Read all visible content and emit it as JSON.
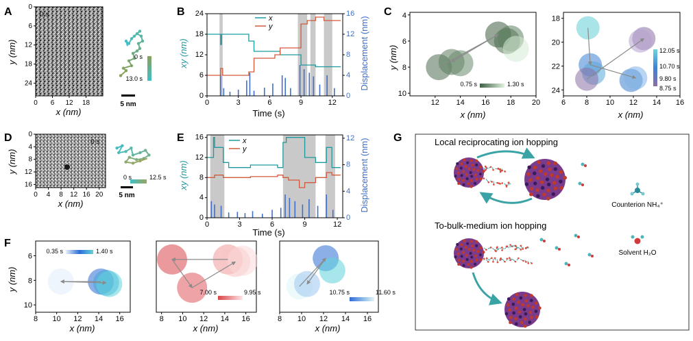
{
  "colors": {
    "x_trace": "#1b9aa0",
    "y_trace": "#d05a3a",
    "displacement": "#3f6fc8",
    "shade": "#c9c9c9",
    "arrow": "#8a8a8a",
    "c_green": "#5c7c5e",
    "c_green_light": "#d7ecd5",
    "c_cyan": "#5dcad3",
    "c_blue": "#3e7fd0",
    "c_purple": "#8a6fa8",
    "f_blue": "#2d6ed6",
    "f_cyan": "#5fd3da",
    "f_red": "#d9464a",
    "f_pink": "#f7c4c4",
    "np_purple": "#7a3b8c",
    "np_red": "#c0392b",
    "chain": "#4aa3a8",
    "nh4_n": "#2a8a9a",
    "h2o_o": "#d03a3a"
  },
  "panels": {
    "A": {
      "label": "A"
    },
    "B": {
      "label": "B"
    },
    "C": {
      "label": "C"
    },
    "D": {
      "label": "D"
    },
    "E": {
      "label": "E"
    },
    "F": {
      "label": "F"
    },
    "G": {
      "label": "G"
    }
  },
  "chart_data": [
    {
      "id": "A-image",
      "type": "heatmap",
      "description_label": "0 s",
      "xlabel": "x (nm)",
      "ylabel": "y (nm)",
      "xticks": [
        0,
        6,
        12,
        18
      ],
      "yticks": [
        0,
        6,
        12,
        18,
        24
      ],
      "xlim": [
        0,
        24
      ],
      "ylim": [
        0,
        28
      ]
    },
    {
      "id": "A-trajectory",
      "type": "line",
      "scale_bar": "5 nm",
      "colorbar_start": "0 s",
      "colorbar_end": "13.0 s",
      "x": [
        0.1,
        0.3,
        0.2,
        0.5,
        0.4,
        0.6,
        0.55,
        0.7,
        0.8,
        0.75,
        0.9,
        0.85,
        0.7,
        0.8,
        0.6,
        0.5,
        0.4,
        0.3,
        0.35
      ],
      "y": [
        0.95,
        0.85,
        0.8,
        0.75,
        0.65,
        0.6,
        0.5,
        0.45,
        0.4,
        0.3,
        0.25,
        0.15,
        0.1,
        0.05,
        0.15,
        0.2,
        0.3,
        0.25,
        0.35
      ]
    },
    {
      "id": "B",
      "type": "line",
      "xlabel": "Time (s)",
      "ylabel_left": "xy (nm)",
      "ylabel_right": "Displacement (nm)",
      "xlim": [
        0,
        13
      ],
      "ylim_left": [
        0,
        24
      ],
      "ylim_right": [
        0,
        16
      ],
      "xticks": [
        0,
        3,
        6,
        9,
        12
      ],
      "yticks_left": [
        0,
        6,
        12,
        18,
        24
      ],
      "yticks_right": [
        0,
        4,
        8,
        12,
        16
      ],
      "legend": [
        "x",
        "y"
      ],
      "shaded_intervals": [
        [
          1.2,
          1.5
        ],
        [
          8.7,
          9.6
        ],
        [
          9.9,
          10.4
        ],
        [
          11.2,
          12.0
        ]
      ],
      "series": [
        {
          "name": "x",
          "t": [
            0,
            1.2,
            1.3,
            1.4,
            1.5,
            3.0,
            4.0,
            4.5,
            6.5,
            7.0,
            8.7,
            9.0,
            9.6,
            10.4,
            12.0,
            12.8
          ],
          "values": [
            18,
            18,
            15,
            18,
            18,
            18,
            16,
            13,
            13,
            12,
            12,
            9,
            9,
            8.5,
            8.5,
            8.5
          ]
        },
        {
          "name": "y",
          "t": [
            0,
            1.2,
            1.3,
            1.5,
            3.0,
            4.0,
            4.5,
            6.5,
            7.0,
            8.7,
            9.0,
            9.6,
            10.4,
            11.2,
            12.0,
            12.8
          ],
          "values": [
            6,
            6,
            8,
            6,
            6,
            7,
            11,
            12,
            14,
            14,
            21,
            22,
            23,
            22,
            22,
            22
          ]
        }
      ],
      "displacement_t": [
        1.3,
        1.6,
        2.2,
        3.0,
        3.8,
        4.1,
        4.5,
        5.5,
        6.3,
        7.2,
        7.5,
        8.0,
        8.9,
        9.3,
        9.8,
        10.2,
        10.8,
        11.5,
        12.2
      ],
      "displacement_values": [
        4.2,
        1.5,
        0.8,
        1.2,
        3.0,
        4.5,
        1.0,
        1.6,
        2.4,
        4.0,
        3.5,
        1.5,
        6.0,
        5.2,
        4.5,
        3.8,
        2.2,
        4.0,
        1.5
      ]
    },
    {
      "id": "C-left",
      "type": "scatter",
      "xlabel": "x (nm)",
      "ylabel": "y (nm)",
      "xlim": [
        10,
        20
      ],
      "ylim": [
        10.2,
        3.8
      ],
      "xticks": [
        12,
        14,
        16,
        18,
        20
      ],
      "yticks": [
        4,
        6,
        8,
        10
      ],
      "colorbar_start": "0.75 s",
      "colorbar_end": "1.30 s",
      "points": [
        [
          12.3,
          8.0
        ],
        [
          13.3,
          7.6
        ],
        [
          14.0,
          7.7
        ],
        [
          17.0,
          5.5
        ],
        [
          17.7,
          6.0
        ],
        [
          18.0,
          5.8
        ],
        [
          18.4,
          6.6
        ]
      ]
    },
    {
      "id": "C-right",
      "type": "scatter",
      "xlabel": "x (nm)",
      "ylabel": "",
      "xlim": [
        6,
        16
      ],
      "ylim": [
        24.5,
        17.5
      ],
      "xticks": [
        6,
        8,
        10,
        12,
        14,
        16
      ],
      "yticks": [
        18,
        20,
        22,
        24
      ],
      "colorbar_labels": [
        "12.05 s",
        "10.70 s",
        "9.80 s",
        "8.75 s"
      ],
      "points": [
        [
          8.1,
          18.8
        ],
        [
          8.3,
          21.9
        ],
        [
          8.6,
          22.6
        ],
        [
          8.0,
          23.1
        ],
        [
          11.8,
          23.2
        ],
        [
          12.2,
          23.0
        ],
        [
          12.9,
          19.7
        ],
        [
          12.6,
          19.9
        ]
      ]
    },
    {
      "id": "D-image",
      "type": "heatmap",
      "description_label": "0 s",
      "xlabel": "x (nm)",
      "ylabel": "y (nm)",
      "xticks": [
        0,
        4,
        8,
        12,
        16,
        20
      ],
      "yticks": [
        0,
        4,
        8,
        12,
        16
      ],
      "xlim": [
        0,
        22
      ],
      "ylim": [
        0,
        17
      ]
    },
    {
      "id": "D-trajectory",
      "type": "line",
      "scale_bar": "5 nm",
      "colorbar_start": "0 s",
      "colorbar_end": "12.5 s",
      "x": [
        0.05,
        0.2,
        0.1,
        0.3,
        0.45,
        0.5,
        0.7,
        0.85,
        0.95,
        0.8,
        0.6,
        0.4,
        0.3,
        0.5,
        0.7,
        0.9
      ],
      "y": [
        0.3,
        0.2,
        0.5,
        0.45,
        0.3,
        0.6,
        0.5,
        0.4,
        0.6,
        0.75,
        0.8,
        0.7,
        0.9,
        0.95,
        0.85,
        0.75
      ]
    },
    {
      "id": "E",
      "type": "line",
      "xlabel": "Time (s)",
      "ylabel_left": "xy (nm)",
      "ylabel_right": "Displacement (nm)",
      "xlim": [
        0,
        12.5
      ],
      "ylim_left": [
        0,
        16.5
      ],
      "ylim_right": [
        0,
        12.5
      ],
      "xticks": [
        0,
        3,
        6,
        9,
        12
      ],
      "yticks_left": [
        0,
        4,
        8,
        12,
        16
      ],
      "yticks_right": [
        0,
        4,
        8,
        12
      ],
      "legend": [
        "x",
        "y"
      ],
      "shaded_intervals": [
        [
          0.3,
          1.6
        ],
        [
          7.0,
          10.0
        ],
        [
          10.9,
          11.8
        ]
      ],
      "series": [
        {
          "name": "x",
          "t": [
            0,
            0.5,
            0.6,
            0.7,
            1.5,
            2.0,
            4.0,
            6.5,
            7.0,
            7.3,
            8.8,
            9.0,
            10.0,
            10.5,
            11.0,
            11.5,
            12.3
          ],
          "values": [
            12,
            12,
            16,
            14,
            11,
            10,
            10.5,
            10,
            15,
            16,
            16,
            12,
            11,
            11,
            14,
            10,
            10
          ]
        },
        {
          "name": "y",
          "t": [
            0,
            0.5,
            0.7,
            1.5,
            4.0,
            6.5,
            7.0,
            7.5,
            8.5,
            9.0,
            10.0,
            11.0,
            11.5,
            12.3
          ],
          "values": [
            8,
            8,
            8.5,
            8,
            8.2,
            8.5,
            8,
            7.5,
            6,
            7,
            8,
            9,
            8.5,
            8.5
          ]
        }
      ],
      "displacement_t": [
        0.4,
        0.7,
        1.3,
        2.0,
        2.8,
        3.5,
        4.2,
        5.1,
        6.0,
        6.8,
        7.2,
        7.6,
        8.1,
        8.8,
        9.4,
        10.2,
        11.0,
        11.6
      ],
      "displacement_values": [
        2.5,
        2.0,
        1.8,
        0.8,
        0.9,
        0.7,
        1.0,
        0.6,
        1.2,
        1.5,
        3.5,
        3.0,
        2.5,
        2.0,
        2.8,
        1.8,
        3.5,
        1.2
      ]
    },
    {
      "id": "F1",
      "type": "scatter",
      "xlabel": "x (nm)",
      "ylabel": "y (nm)",
      "xlim": [
        8,
        17
      ],
      "ylim": [
        10.6,
        4.8
      ],
      "xticks": [
        8,
        10,
        12,
        14,
        16
      ],
      "yticks": [
        6,
        8,
        10
      ],
      "colorbar_start": "0.35 s",
      "colorbar_end": "1.40 s",
      "points": [
        [
          10.4,
          8.1
        ],
        [
          14.2,
          8.1
        ],
        [
          14.7,
          8.2
        ],
        [
          15.0,
          8.3
        ]
      ]
    },
    {
      "id": "F2",
      "type": "scatter",
      "xlabel": "x (nm)",
      "ylabel": "",
      "xlim": [
        7.5,
        17
      ],
      "ylim": [
        10.6,
        4.8
      ],
      "xticks": [
        8,
        10,
        12,
        14,
        16
      ],
      "yticks": [],
      "colorbar_start": "7.00 s",
      "colorbar_end": "9.95 s",
      "points": [
        [
          9.0,
          6.3
        ],
        [
          10.9,
          8.6
        ],
        [
          14.3,
          6.3
        ],
        [
          15.0,
          6.5
        ],
        [
          15.7,
          6.4
        ]
      ]
    },
    {
      "id": "F3",
      "type": "scatter",
      "xlabel": "x (nm)",
      "ylabel": "",
      "xlim": [
        8,
        17
      ],
      "ylim": [
        10.6,
        4.8
      ],
      "xticks": [
        8,
        10,
        12,
        14,
        16
      ],
      "yticks": [],
      "colorbar_start": "10.75 s",
      "colorbar_end": "11.60 s",
      "points": [
        [
          9.8,
          8.5
        ],
        [
          10.5,
          8.3
        ],
        [
          12.2,
          6.2
        ],
        [
          12.8,
          7.2
        ]
      ]
    }
  ],
  "schematic": {
    "title_top": "Local reciprocating ion hopping",
    "title_bottom": "To-bulk-medium ion hopping",
    "legend_counterion": "Counterion NH₄⁺",
    "legend_solvent": "Solvent H₂O"
  }
}
